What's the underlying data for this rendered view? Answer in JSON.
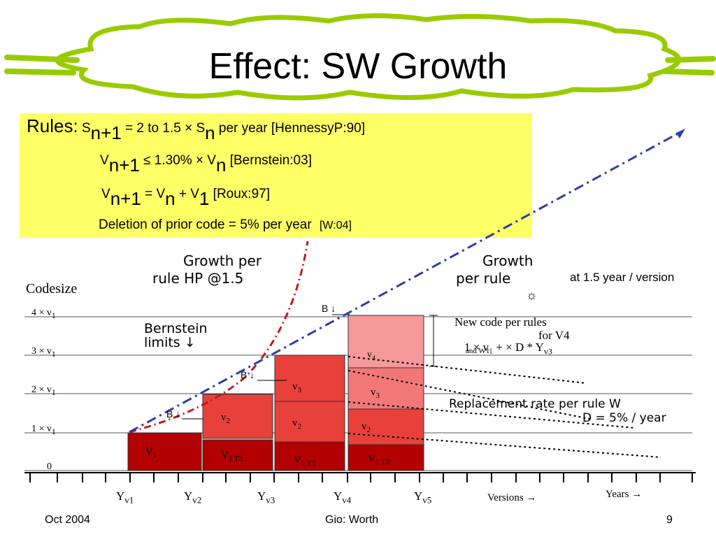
{
  "title": "Effect: SW Growth",
  "rules": {
    "label": "Rules:",
    "line1": {
      "a": "S",
      "sub1": "n+1",
      "b": " = 2 to 1.5 × S",
      "sub2": "n",
      "c": " per year [HennessyP:90]"
    },
    "line2": {
      "a": "V",
      "sub1": "n+1",
      "b": " ≤ 1.30% × V",
      "sub2": "n",
      "c": "  [Bernstein:03]"
    },
    "line3": {
      "a": "V",
      "sub1": "n+1",
      "b": " = V",
      "sub2": "n",
      "c": " + V",
      "sub3": "1",
      "d": "  [Roux:97]"
    },
    "line4": {
      "a": "Deletion of prior code = 5% per year",
      "b": "[W:04]"
    }
  },
  "chart": {
    "y_title": "Codesize",
    "y_ticks": [
      {
        "a": "4 × v",
        "s": "1"
      },
      {
        "a": "3 × v",
        "s": "1"
      },
      {
        "a": "2 × v",
        "s": "1"
      },
      {
        "a": "1 × v",
        "s": "1"
      },
      {
        "a": "0",
        "s": ""
      }
    ],
    "x_ticks": [
      {
        "a": "Y",
        "s": "v1"
      },
      {
        "a": "Y",
        "s": "v2"
      },
      {
        "a": "Y",
        "s": "v3"
      },
      {
        "a": "Y",
        "s": "v4"
      },
      {
        "a": "Y",
        "s": "v5"
      }
    ],
    "versions_label": "Versions →",
    "years_label": "Years →",
    "growth_hp_line1": "Growth per",
    "growth_hp_line2": "rule HP @1.5",
    "growth_rule_line1": "Growth",
    "growth_rule_line2": "per rule",
    "growth_rule_note": "at 1.5 year / version",
    "sun_glyph": "☼",
    "bernstein_line1": "Bernstein",
    "bernstein_line2": "limits ↓",
    "b_marks": [
      "B ↓",
      "B ↓",
      "B ↓"
    ],
    "new_code_line1": "New code per rules",
    "new_code_line2": "for V4",
    "new_code_line3": "1 × v₁ + × D * Y",
    "new_code_sub": "v3",
    "new_code_and": "and W1",
    "replacement_line1": "Replacement rate per rule W",
    "replacement_line2": "D = 5% / year",
    "bars": [
      {
        "label": "V",
        "sub": "1"
      },
      {
        "label": "V",
        "sub": "1 T2"
      },
      {
        "label": "v",
        "sub": "2"
      },
      {
        "label": "V",
        "sub": "1 T3"
      },
      {
        "label": "v",
        "sub": "2"
      },
      {
        "label": "v",
        "sub": "3"
      },
      {
        "label": "V",
        "sub": "1 T3"
      },
      {
        "label": "v",
        "sub": "2"
      },
      {
        "label": "v",
        "sub": "3"
      },
      {
        "label": "v",
        "sub": "4"
      }
    ],
    "colors": {
      "dark_red": "#b30000",
      "mid_red": "#e8413c",
      "light_red": "#f27877",
      "pink": "#f5999b",
      "accent_line": "#2b3fa8",
      "hp_curve": "#c11a1a"
    }
  },
  "footer": {
    "left": "Oct 2004",
    "center": "Gio: Worth",
    "right": "9"
  }
}
